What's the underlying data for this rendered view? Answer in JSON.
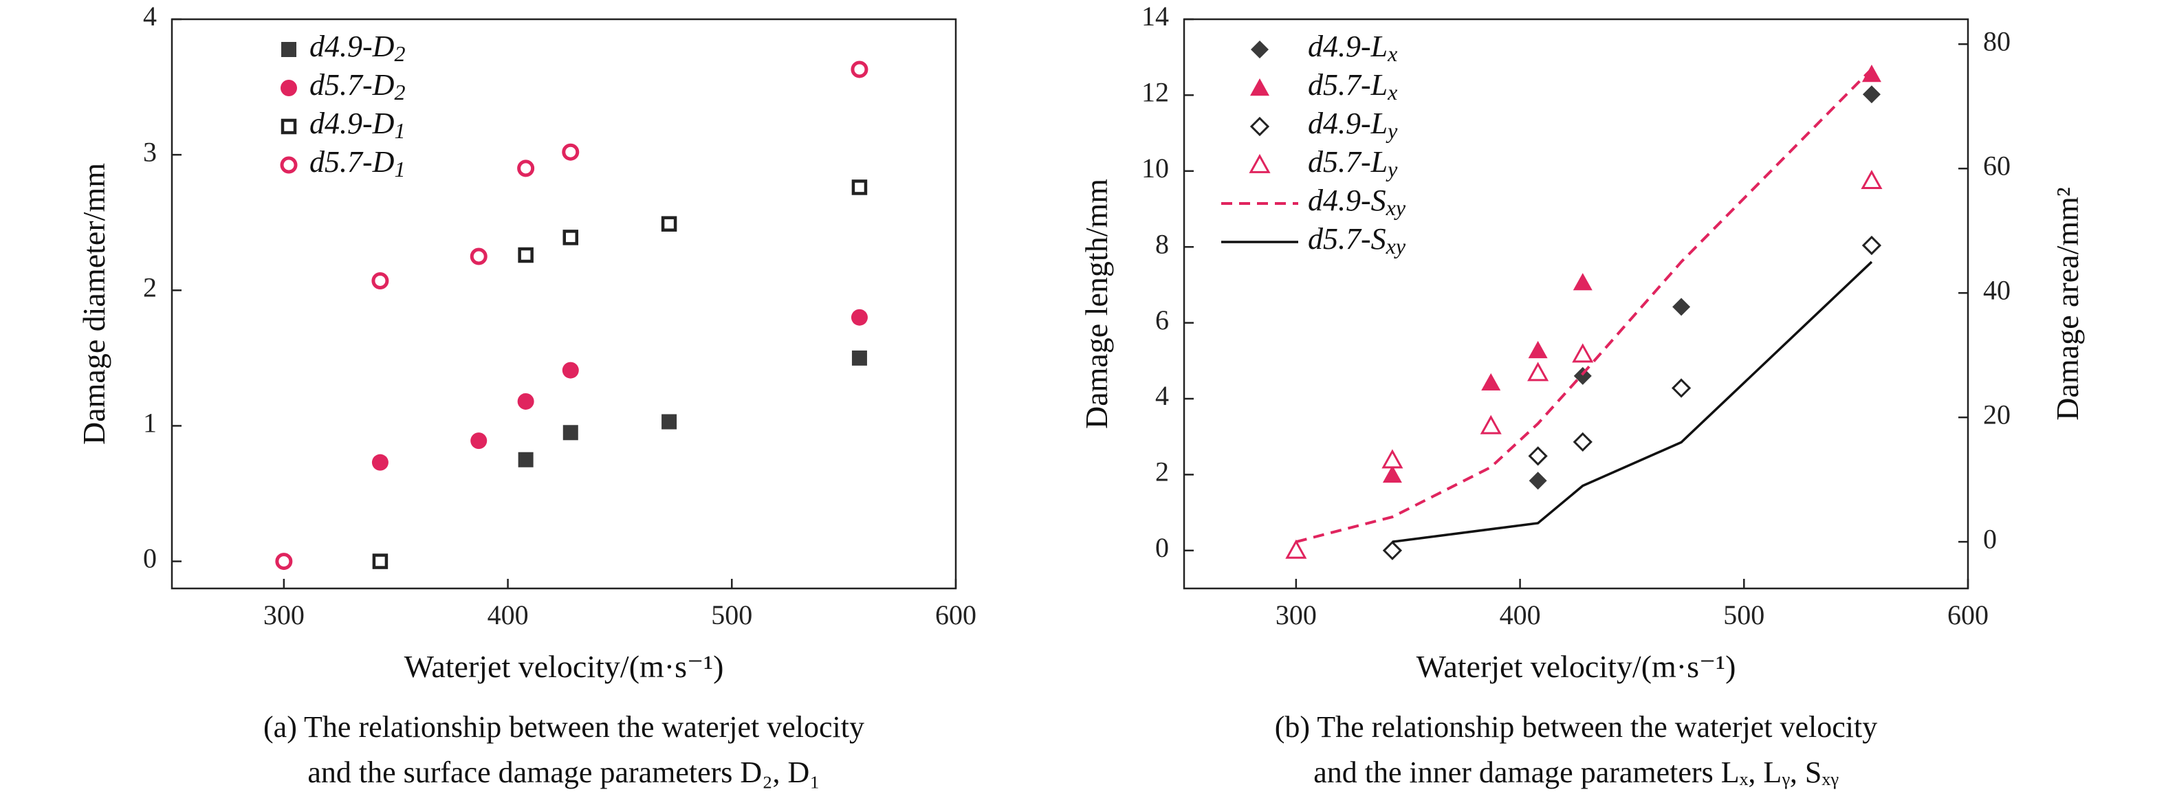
{
  "chart_data": [
    {
      "type": "scatter",
      "xlabel": "Waterjet velocity/(m·s⁻¹)",
      "ylabel": "Damage diameter/mm",
      "xlim": [
        250,
        600
      ],
      "ylim": [
        -0.2,
        4
      ],
      "xticks": [
        300,
        400,
        500,
        600
      ],
      "yticks": [
        0,
        1,
        2,
        3,
        4
      ],
      "legend_position": "top-left",
      "caption_lines": [
        "(a) The relationship between the waterjet velocity",
        "and the surface damage parameters D₂, D₁"
      ],
      "colors": {
        "dark": "#3a3a3a",
        "pink": "#e0245e"
      },
      "series": [
        {
          "name": "d4.9-D₂",
          "marker": "square-filled",
          "color": "#3a3a3a",
          "x": [
            408,
            428,
            472,
            557
          ],
          "y": [
            0.75,
            0.95,
            1.03,
            1.5
          ]
        },
        {
          "name": "d5.7-D₂",
          "marker": "circle-filled",
          "color": "#e0245e",
          "x": [
            343,
            387,
            408,
            428,
            557
          ],
          "y": [
            0.73,
            0.89,
            1.18,
            1.41,
            1.8
          ]
        },
        {
          "name": "d4.9-D₁",
          "marker": "square-open",
          "color": "#222222",
          "x": [
            343,
            408,
            428,
            472,
            557
          ],
          "y": [
            0.0,
            2.26,
            2.39,
            2.49,
            2.76
          ]
        },
        {
          "name": "d5.7-D₁",
          "marker": "circle-open",
          "color": "#e0245e",
          "x": [
            300,
            343,
            387,
            408,
            428,
            557
          ],
          "y": [
            0.0,
            2.07,
            2.25,
            2.9,
            3.02,
            3.63
          ]
        }
      ]
    },
    {
      "type": "scatter",
      "xlabel": "Waterjet velocity/(m·s⁻¹)",
      "ylabel": "Damage length/mm",
      "y2label": "Damage area/mm²",
      "xlim": [
        250,
        600
      ],
      "ylim": [
        -1.0,
        14
      ],
      "y2lim": [
        -7.5,
        84
      ],
      "xticks": [
        300,
        400,
        500,
        600
      ],
      "yticks": [
        0,
        2,
        4,
        6,
        8,
        10,
        12,
        14
      ],
      "y2ticks": [
        0,
        20,
        40,
        60,
        80
      ],
      "legend_position": "top-left",
      "caption_lines": [
        "(b) The relationship between the waterjet velocity",
        "and the inner damage parameters Lₓ, Lᵧ, Sₓᵧ"
      ],
      "colors": {
        "dark": "#3a3a3a",
        "pink": "#e0245e",
        "line_dark": "#111111"
      },
      "series": [
        {
          "name": "d4.9-Lₓ",
          "marker": "diamond-filled",
          "color": "#3a3a3a",
          "axis": "left",
          "x": [
            408,
            428,
            472,
            557
          ],
          "y": [
            1.84,
            4.6,
            6.42,
            12.02
          ]
        },
        {
          "name": "d5.7-Lₓ",
          "marker": "triangle-filled",
          "color": "#e0245e",
          "axis": "left",
          "x": [
            343,
            387,
            408,
            428,
            557
          ],
          "y": [
            1.99,
            4.42,
            5.27,
            7.06,
            12.55
          ]
        },
        {
          "name": "d4.9-Lᵧ",
          "marker": "diamond-open",
          "color": "#222222",
          "axis": "left",
          "x": [
            343,
            408,
            428,
            472,
            557
          ],
          "y": [
            0.0,
            2.49,
            2.86,
            4.28,
            8.04
          ]
        },
        {
          "name": "d5.7-Lᵧ",
          "marker": "triangle-open",
          "color": "#e0245e",
          "axis": "left",
          "x": [
            300,
            343,
            387,
            408,
            428,
            557
          ],
          "y": [
            0.0,
            2.38,
            3.28,
            4.68,
            5.17,
            9.74
          ]
        },
        {
          "name": "d4.9-Sₓᵧ",
          "marker": "dashed-line",
          "color": "#e0245e",
          "axis": "right",
          "x": [
            300,
            343,
            387,
            408,
            428,
            472,
            557
          ],
          "y": [
            0,
            4,
            12,
            19,
            27,
            45,
            76
          ]
        },
        {
          "name": "d5.7-Sₓᵧ",
          "marker": "solid-line",
          "color": "#111111",
          "axis": "right",
          "x": [
            343,
            408,
            428,
            472,
            557
          ],
          "y": [
            0,
            3,
            9,
            16,
            45
          ]
        }
      ]
    }
  ]
}
